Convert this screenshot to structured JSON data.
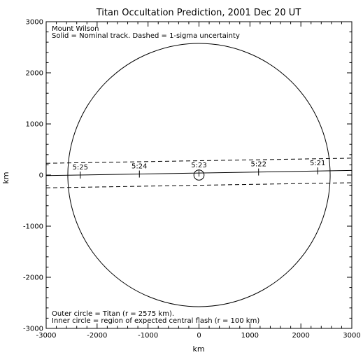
{
  "chart_data": {
    "type": "line",
    "title": "Titan Occultation Prediction, 2001 Dec 20 UT",
    "xlabel": "km",
    "ylabel": "km",
    "xlim": [
      -3000,
      3000
    ],
    "ylim": [
      -3000,
      3000
    ],
    "xticks": [
      -3000,
      -2000,
      -1000,
      0,
      1000,
      2000,
      3000
    ],
    "yticks": [
      -3000,
      -2000,
      -1000,
      0,
      1000,
      2000,
      3000
    ],
    "grid": false,
    "annotations": {
      "site": "Mount Wilson",
      "legend": "Solid = Nominal track.  Dashed = 1-sigma uncertainty",
      "outer_note": "Outer circle = Titan (r = 2575 km).",
      "inner_note": "Inner circle = region of expected central flash (r = 100 km)"
    },
    "circles": [
      {
        "name": "Titan",
        "r": 2575,
        "cx": 0,
        "cy": 0
      },
      {
        "name": "central flash",
        "r": 100,
        "cx": 0,
        "cy": 0
      }
    ],
    "series": [
      {
        "style": "solid",
        "x": [
          -3000,
          3000
        ],
        "y": [
          -10,
          90
        ]
      },
      {
        "style": "dashed",
        "x": [
          -3000,
          3000
        ],
        "y": [
          230,
          330
        ]
      },
      {
        "style": "dashed",
        "x": [
          -3000,
          3000
        ],
        "y": [
          -250,
          -150
        ]
      }
    ],
    "time_marks": [
      {
        "label": "5:25",
        "x": -2330,
        "y": 0
      },
      {
        "label": "5:24",
        "x": -1170,
        "y": 20
      },
      {
        "label": "5:23",
        "x": 0,
        "y": 40
      },
      {
        "label": "5:22",
        "x": 1170,
        "y": 60
      },
      {
        "label": "5:21",
        "x": 2330,
        "y": 80
      }
    ]
  }
}
